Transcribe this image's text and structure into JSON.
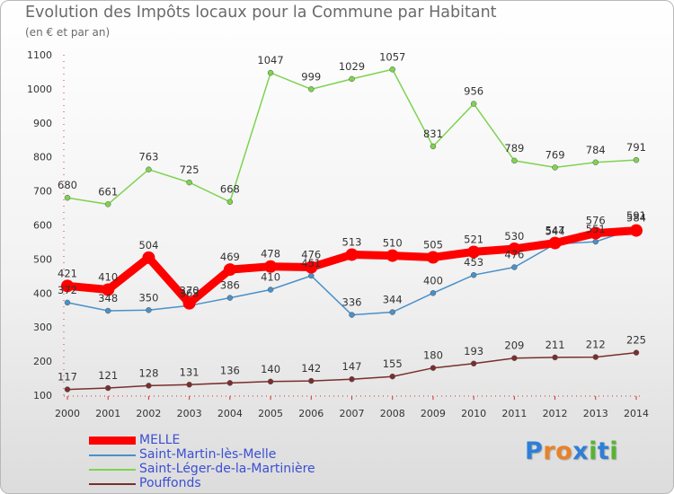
{
  "header": {
    "title": "Evolution des Impôts locaux pour la Commune par Habitant",
    "subtitle": "(en € et par an)"
  },
  "logo": {
    "text": "Proxiti",
    "letter_colors": [
      "#2e7fd6",
      "#e8822a",
      "#e8822a",
      "#2e7fd6",
      "#55b532",
      "#2e7fd6",
      "#55b532"
    ]
  },
  "chart_data": {
    "type": "line",
    "title": "Evolution des Impôts locaux pour la Commune par Habitant",
    "subtitle": "(en € et par an)",
    "xlabel": "",
    "ylabel": "",
    "x": [
      "2000",
      "2001",
      "2002",
      "2003",
      "2004",
      "2005",
      "2006",
      "2007",
      "2008",
      "2009",
      "2010",
      "2011",
      "2012",
      "2013",
      "2014"
    ],
    "y_ticks": [
      100,
      200,
      300,
      400,
      500,
      600,
      700,
      800,
      900,
      1000,
      1100
    ],
    "ylim": [
      100,
      1100
    ],
    "grid": false,
    "legend_position": "bottom-left",
    "series": [
      {
        "name": "MELLE",
        "color": "#ff0000",
        "emphasis": true,
        "values": [
          421,
          410,
          504,
          370,
          469,
          478,
          476,
          513,
          510,
          505,
          521,
          530,
          547,
          576,
          584
        ]
      },
      {
        "name": "Saint-Martin-lès-Melle",
        "color": "#4a90c8",
        "values": [
          372,
          348,
          350,
          363,
          386,
          410,
          451,
          336,
          344,
          400,
          453,
          476,
          544,
          551,
          591
        ]
      },
      {
        "name": "Saint-Léger-de-la-Martinière",
        "color": "#7ed34f",
        "values": [
          680,
          661,
          763,
          725,
          668,
          1047,
          999,
          1029,
          1057,
          831,
          956,
          789,
          769,
          784,
          791
        ]
      },
      {
        "name": "Pouffonds",
        "color": "#7a2e2e",
        "values": [
          117,
          121,
          128,
          131,
          136,
          140,
          142,
          147,
          155,
          180,
          193,
          209,
          211,
          212,
          225
        ]
      }
    ]
  }
}
